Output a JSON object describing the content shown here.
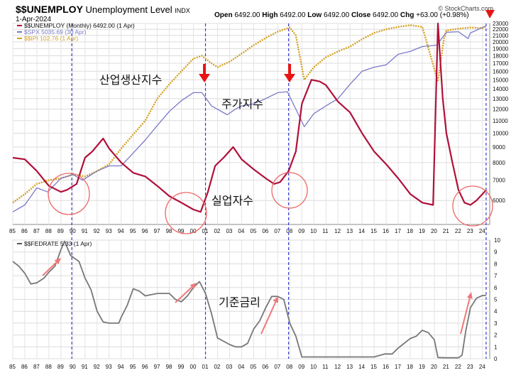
{
  "header": {
    "symbol": "$$UNEMPLOY",
    "name": "Unemployment Level",
    "exchange": "INDX",
    "date": "1-Apr-2024",
    "open_label": "Open",
    "open": "6492.00",
    "high_label": "High",
    "high": "6492.00",
    "low_label": "Low",
    "low": "6492.00",
    "close_label": "Close",
    "close": "6492.00",
    "chg_label": "Chg",
    "chg": "+63.00 (+0.98%)",
    "brand": "© StockCharts.com"
  },
  "colors": {
    "unemploy": "#b0103a",
    "spx": "#7a7ac8",
    "ipi": "#d4a020",
    "fedrate": "#777777",
    "recession": "#3a3acc",
    "arrow": "#e81414",
    "circle": "#ee6666"
  },
  "chart_data": [
    {
      "type": "line",
      "title": "$$UNEMPLOY Unemployment Level INDX",
      "legend": [
        {
          "label": "$$UNEMPLOY (Monthly) 6492.00 (1 Apr)",
          "color": "#b0103a"
        },
        {
          "label": "$SPX 5035.69 (30 Apr)",
          "color": "#7a7ac8"
        },
        {
          "label": "$$IPI 102.76 (1 Apr)",
          "color": "#d4a020"
        }
      ],
      "yscale": "log",
      "ylim": [
        5000,
        23000
      ],
      "yticks": [
        6000,
        7000,
        8000,
        9000,
        10000,
        11000,
        12000,
        13000,
        14000,
        15000,
        16000,
        17000,
        18000,
        19000,
        20000,
        21000,
        22000,
        23000
      ],
      "xlim": [
        1985,
        2024.6
      ],
      "xtick_labels": [
        "85",
        "86",
        "87",
        "88",
        "89",
        "90",
        "91",
        "92",
        "93",
        "94",
        "95",
        "96",
        "97",
        "98",
        "99",
        "00",
        "01",
        "02",
        "03",
        "04",
        "05",
        "06",
        "07",
        "08",
        "09",
        "10",
        "11",
        "12",
        "13",
        "14",
        "15",
        "16",
        "17",
        "18",
        "19",
        "20",
        "21",
        "22",
        "23",
        "24"
      ],
      "recession_lines": [
        1989.9,
        2001.0,
        2007.9,
        2024.3
      ],
      "series": [
        {
          "name": "$$UNEMPLOY",
          "unit": "thousands",
          "x": [
            1985,
            1986,
            1987,
            1988,
            1989,
            1989.5,
            1990.3,
            1991,
            1991.6,
            1992.5,
            1993,
            1994,
            1995,
            1996,
            1997,
            1998,
            1999,
            2000,
            2000.6,
            2001.2,
            2001.8,
            2002.5,
            2003.3,
            2004,
            2005,
            2006,
            2006.7,
            2007.2,
            2007.9,
            2008.5,
            2009,
            2009.8,
            2010.5,
            2011,
            2012,
            2013,
            2014,
            2015,
            2016,
            2017,
            2018,
            2019,
            2019.9,
            2020.3,
            2020.7,
            2021,
            2021.5,
            2022,
            2022.5,
            2023,
            2023.5,
            2024,
            2024.3
          ],
          "y": [
            8300,
            8200,
            7500,
            6700,
            6400,
            6500,
            6800,
            8300,
            8700,
            9600,
            8900,
            8000,
            7400,
            7200,
            6700,
            6200,
            5900,
            5600,
            5500,
            6400,
            7800,
            8300,
            9000,
            8200,
            7600,
            7100,
            6800,
            6900,
            7500,
            8700,
            12500,
            15000,
            14800,
            14400,
            12700,
            11700,
            10000,
            8700,
            7900,
            7100,
            6300,
            5900,
            5800,
            23000,
            13000,
            10000,
            8000,
            6500,
            5900,
            5800,
            6000,
            6300,
            6492
          ]
        },
        {
          "name": "$SPX",
          "x": [
            1985,
            1986,
            1987,
            1987.9,
            1989,
            1990,
            1990.8,
            1992,
            1993,
            1994,
            1995,
            1996,
            1997,
            1998,
            1999,
            2000,
            2000.7,
            2001.5,
            2002.8,
            2003.5,
            2004,
            2005,
            2006,
            2007,
            2007.8,
            2008.5,
            2009.2,
            2010,
            2011,
            2012,
            2013,
            2014,
            2015,
            2016,
            2017,
            2018,
            2019,
            2020.2,
            2021,
            2022,
            2022.8,
            2023,
            2024,
            2024.3
          ],
          "y": [
            5500,
            5800,
            6600,
            6400,
            7100,
            7300,
            7000,
            7500,
            7800,
            7800,
            8600,
            9500,
            10600,
            11800,
            12800,
            13600,
            13600,
            12300,
            11500,
            12000,
            12300,
            12500,
            13000,
            13600,
            13700,
            12000,
            10500,
            11600,
            12300,
            13000,
            14500,
            16000,
            16500,
            16800,
            18200,
            18600,
            19300,
            19500,
            21500,
            21600,
            20500,
            21400,
            22300,
            22600
          ]
        },
        {
          "name": "$$IPI",
          "x": [
            1985,
            1986,
            1987,
            1988,
            1989,
            1990,
            1991,
            1992,
            1993,
            1994,
            1995,
            1996,
            1997,
            1998,
            1999,
            2000,
            2000.7,
            2001.5,
            2002,
            2003,
            2004,
            2005,
            2006,
            2007,
            2008,
            2008.5,
            2009.2,
            2010,
            2011,
            2012,
            2013,
            2014,
            2015,
            2016,
            2017,
            2018,
            2019,
            2020.3,
            2020.8,
            2021,
            2022,
            2023,
            2024,
            2024.3
          ],
          "y": [
            5900,
            6300,
            6800,
            7000,
            7100,
            7300,
            7200,
            7500,
            7900,
            8900,
            9900,
            11000,
            13000,
            14500,
            16000,
            17600,
            18000,
            17000,
            16500,
            17200,
            18300,
            19500,
            20600,
            21600,
            22300,
            21000,
            15000,
            16500,
            17800,
            18600,
            19300,
            20400,
            21400,
            22000,
            22400,
            22700,
            22400,
            14800,
            20500,
            21800,
            22100,
            22300,
            22200,
            22500
          ]
        }
      ],
      "annotations": [
        "산업생산지수",
        "주가지수",
        "실업자수"
      ]
    },
    {
      "type": "line",
      "title": "$$FEDRATE 5.33 (1 Apr)",
      "ylim": [
        0,
        10
      ],
      "yticks": [
        0,
        1,
        2,
        3,
        4,
        5,
        6,
        7,
        8,
        9,
        10
      ],
      "xlim": [
        1985,
        2024.6
      ],
      "xtick_labels": [
        "85",
        "86",
        "87",
        "88",
        "89",
        "90",
        "91",
        "92",
        "93",
        "94",
        "95",
        "96",
        "97",
        "98",
        "99",
        "00",
        "01",
        "02",
        "03",
        "04",
        "05",
        "06",
        "07",
        "08",
        "09",
        "10",
        "11",
        "12",
        "13",
        "14",
        "15",
        "16",
        "17",
        "18",
        "19",
        "20",
        "21",
        "22",
        "23",
        "24"
      ],
      "recession_lines": [
        1989.9,
        2001.0,
        2007.9,
        2024.3
      ],
      "series": [
        {
          "name": "$$FEDRATE",
          "unit": "percent",
          "x": [
            1985,
            1985.5,
            1986,
            1986.5,
            1987,
            1987.6,
            1988,
            1988.5,
            1989,
            1989.3,
            1989.8,
            1990.5,
            1991,
            1991.5,
            1992,
            1992.5,
            1993,
            1993.8,
            1994,
            1994.5,
            1995,
            1995.5,
            1996,
            1997,
            1998,
            1998.5,
            1999,
            1999.5,
            2000,
            2000.5,
            2001,
            2001.5,
            2002,
            2003,
            2003.5,
            2004,
            2004.5,
            2005,
            2005.5,
            2006,
            2006.5,
            2007,
            2007.5,
            2008,
            2008.5,
            2009,
            2010,
            2015,
            2015.9,
            2016.5,
            2017,
            2018,
            2018.5,
            2019,
            2019.5,
            2020,
            2020.3,
            2021,
            2022,
            2022.3,
            2022.6,
            2023,
            2023.5,
            2024,
            2024.3
          ],
          "y": [
            8.2,
            7.8,
            7.2,
            6.3,
            6.4,
            6.8,
            7.3,
            7.8,
            9.2,
            9.9,
            8.7,
            8.2,
            6.8,
            5.8,
            4.0,
            3.1,
            3.0,
            3.0,
            3.5,
            4.5,
            5.9,
            5.7,
            5.3,
            5.5,
            5.5,
            5.0,
            4.8,
            5.3,
            6.0,
            6.5,
            5.5,
            3.8,
            1.75,
            1.2,
            1.0,
            1.0,
            1.3,
            2.5,
            3.2,
            4.3,
            5.25,
            5.25,
            5.0,
            3.0,
            1.9,
            0.15,
            0.15,
            0.15,
            0.4,
            0.4,
            0.9,
            1.7,
            1.9,
            2.4,
            2.2,
            1.6,
            0.1,
            0.08,
            0.08,
            0.3,
            2.3,
            4.3,
            5.1,
            5.33,
            5.33
          ]
        }
      ],
      "annotations": [
        "기준금리"
      ]
    }
  ]
}
